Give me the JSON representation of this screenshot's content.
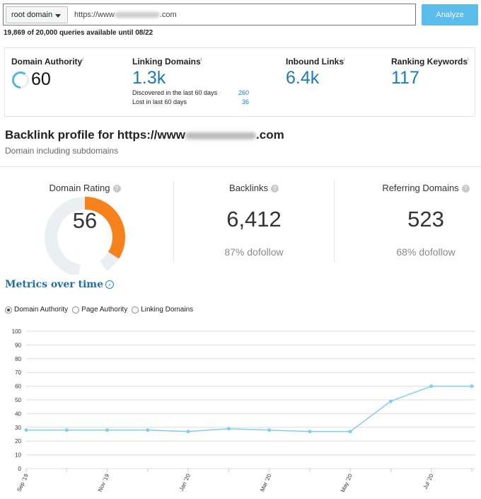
{
  "search": {
    "scope": "root domain",
    "url_prefix": "https://www",
    "url_suffix": ".com",
    "button": "Analyze",
    "quota": "19,869 of 20,000 queries available until 08/22"
  },
  "metrics": {
    "domain_authority": {
      "label": "Domain Authority",
      "value": "60"
    },
    "linking_domains": {
      "label": "Linking Domains",
      "value": "1.3k",
      "discovered_label": "Discovered in the last 60 days",
      "discovered": "260",
      "lost_label": "Lost in last 60 days",
      "lost": "36"
    },
    "inbound_links": {
      "label": "Inbound Links",
      "value": "6.4k"
    },
    "ranking_keywords": {
      "label": "Ranking Keywords",
      "value": "117"
    },
    "info": "i"
  },
  "backlink": {
    "title_prefix": "Backlink profile for https://www",
    "title_suffix": ".com",
    "subtitle": "Domain including subdomains"
  },
  "stats": {
    "domain_rating": {
      "label": "Domain Rating",
      "value": "56",
      "fill": 0.56
    },
    "backlinks": {
      "label": "Backlinks",
      "value": "6,412",
      "sub": "87% dofollow"
    },
    "referring": {
      "label": "Referring Domains",
      "value": "523",
      "sub": "68% dofollow"
    },
    "help": "?"
  },
  "colors": {
    "accent": "#1b7ab8",
    "orange": "#f7821b",
    "line": "#7fcdf0",
    "button": "#5bbbea"
  },
  "metrics_over_time": {
    "title": "Metrics over time",
    "radios": [
      {
        "label": "Domain Authority",
        "checked": true
      },
      {
        "label": "Page Authority",
        "checked": false
      },
      {
        "label": "Linking Domains",
        "checked": false
      }
    ]
  },
  "chart_data": {
    "type": "line",
    "x": [
      "Sep '19",
      "Oct '19",
      "Nov '19",
      "Dec '19",
      "Jan '20",
      "Feb '20",
      "Mar '20",
      "Apr '20",
      "May '20",
      "Jun '20",
      "Jul '20",
      "Aug '20"
    ],
    "x_tick_labels": [
      "Sep '19",
      "",
      "Nov '19",
      "",
      "Jan '20",
      "",
      "Mar '20",
      "",
      "May '20",
      "",
      "Jul '20",
      ""
    ],
    "series": [
      {
        "values": [
          28,
          28,
          28,
          28,
          27,
          29,
          28,
          27,
          27,
          49,
          60,
          60
        ]
      }
    ],
    "ylim": [
      0,
      100
    ],
    "yticks": [
      0,
      10,
      20,
      30,
      40,
      50,
      60,
      70,
      80,
      90,
      100
    ],
    "grid": true
  }
}
